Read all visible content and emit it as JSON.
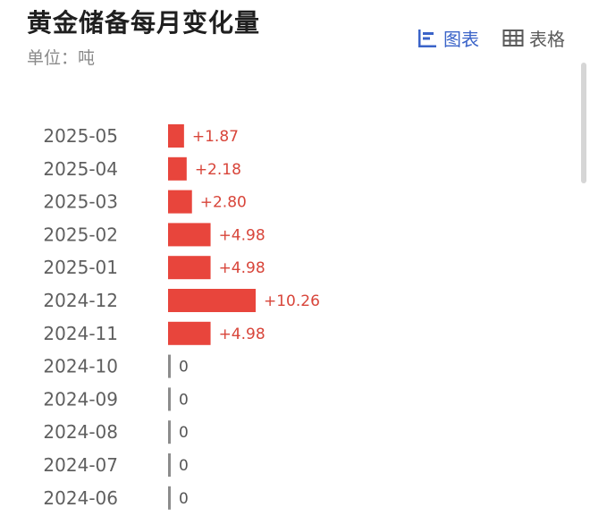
{
  "header": {
    "title": "黄金储备每月变化量",
    "unit": "单位：吨"
  },
  "tabs": [
    {
      "label": "图表",
      "icon": "bar-chart-icon",
      "active": true
    },
    {
      "label": "表格",
      "icon": "table-icon",
      "active": false
    }
  ],
  "colors": {
    "bar": "#e8453c",
    "zero_bar": "#8c8c8c",
    "positive_label": "#d8453a",
    "zero_label": "#555555",
    "active_tab": "#3a63c8"
  },
  "chart_data": {
    "type": "bar",
    "orientation": "horizontal",
    "categories": [
      "2025-05",
      "2025-04",
      "2025-03",
      "2025-02",
      "2025-01",
      "2024-12",
      "2024-11",
      "2024-10",
      "2024-09",
      "2024-08",
      "2024-07",
      "2024-06"
    ],
    "values": [
      1.87,
      2.18,
      2.8,
      4.98,
      4.98,
      10.26,
      4.98,
      0,
      0,
      0,
      0,
      0
    ],
    "value_labels": [
      "+1.87",
      "+2.18",
      "+2.80",
      "+4.98",
      "+4.98",
      "+10.26",
      "+4.98",
      "0",
      "0",
      "0",
      "0",
      "0"
    ],
    "xlim": [
      0,
      10.26
    ]
  }
}
